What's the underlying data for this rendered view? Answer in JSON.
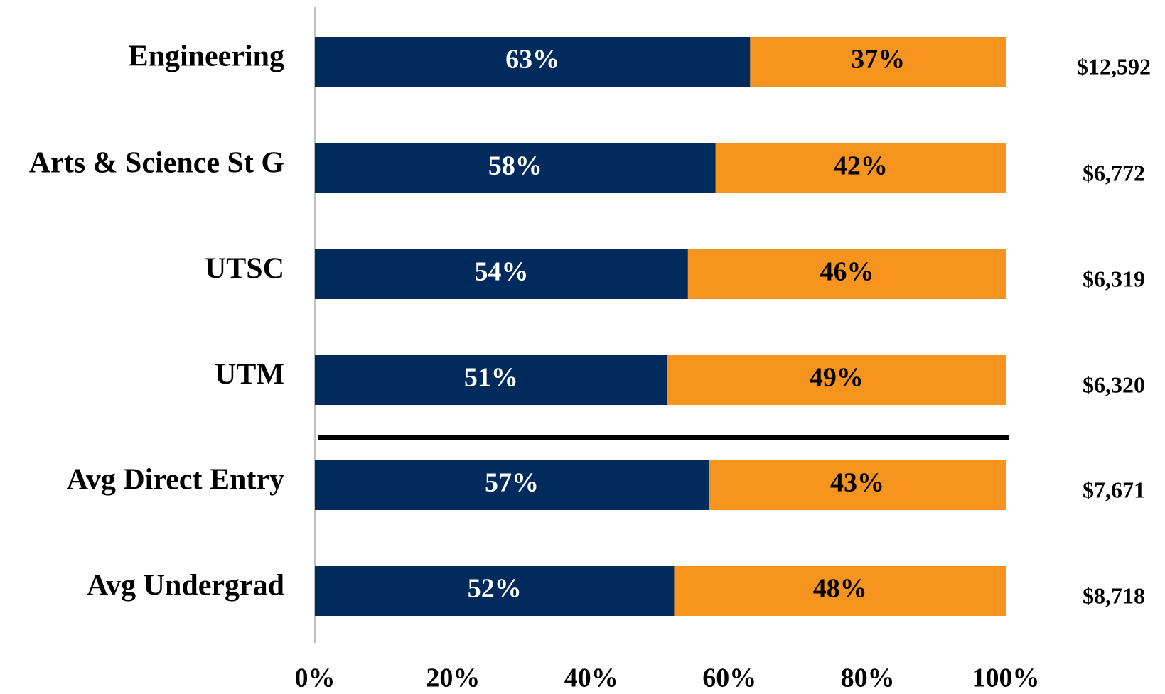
{
  "chart_data": {
    "type": "stacked_bar_horizontal",
    "categories": [
      "Engineering",
      "Arts & Science St G",
      "UTSC",
      "UTM",
      "Avg Direct Entry",
      "Avg Undergrad"
    ],
    "series": [
      {
        "color": "#002b5c",
        "label_color": "#ffffff",
        "values": [
          63,
          58,
          54,
          51,
          57,
          52
        ],
        "value_labels": [
          "63%",
          "58%",
          "54%",
          "51%",
          "57%",
          "52%"
        ]
      },
      {
        "color": "#f7941d",
        "label_color": "#000000",
        "values": [
          37,
          42,
          46,
          49,
          43,
          48
        ],
        "value_labels": [
          "37%",
          "42%",
          "46%",
          "49%",
          "43%",
          "48%"
        ]
      }
    ],
    "annotations": [
      "$12,592",
      "$6,772",
      "$6,319",
      "$6,320",
      "$7,671",
      "$8,718"
    ],
    "xlim": [
      0,
      100
    ],
    "xticks": [
      {
        "value": 0,
        "label": "0%"
      },
      {
        "value": 20,
        "label": "20%"
      },
      {
        "value": 40,
        "label": "40%"
      },
      {
        "value": 60,
        "label": "60%"
      },
      {
        "value": 80,
        "label": "80%"
      },
      {
        "value": 100,
        "label": "100%"
      }
    ],
    "grid": false
  }
}
